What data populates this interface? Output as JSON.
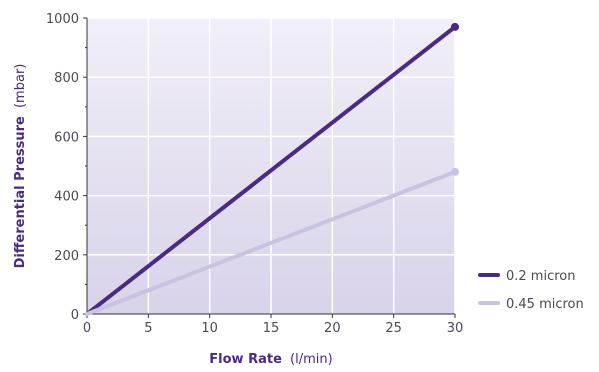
{
  "chart_data": {
    "type": "line",
    "xlabel_bold": "Flow Rate",
    "xlabel_unit": "(l/min)",
    "ylabel_bold": "Differential Pressure",
    "ylabel_unit": "(mbar)",
    "xlim": [
      0,
      30
    ],
    "ylim": [
      0,
      1000
    ],
    "x_ticks": [
      0,
      5,
      10,
      15,
      20,
      25,
      30
    ],
    "y_ticks": [
      0,
      200,
      400,
      600,
      800,
      1000
    ],
    "grid": true,
    "legend_position": "bottom-right",
    "series": [
      {
        "name": "0.2 micron",
        "color": "#4b2a82",
        "points": [
          [
            0,
            0
          ],
          [
            30,
            970
          ]
        ]
      },
      {
        "name": "0.45 micron",
        "color": "#c9c2e0",
        "points": [
          [
            0,
            0
          ],
          [
            30,
            480
          ]
        ]
      }
    ],
    "plot_gradient": [
      "#f1eff8",
      "#d8d3ea"
    ]
  }
}
